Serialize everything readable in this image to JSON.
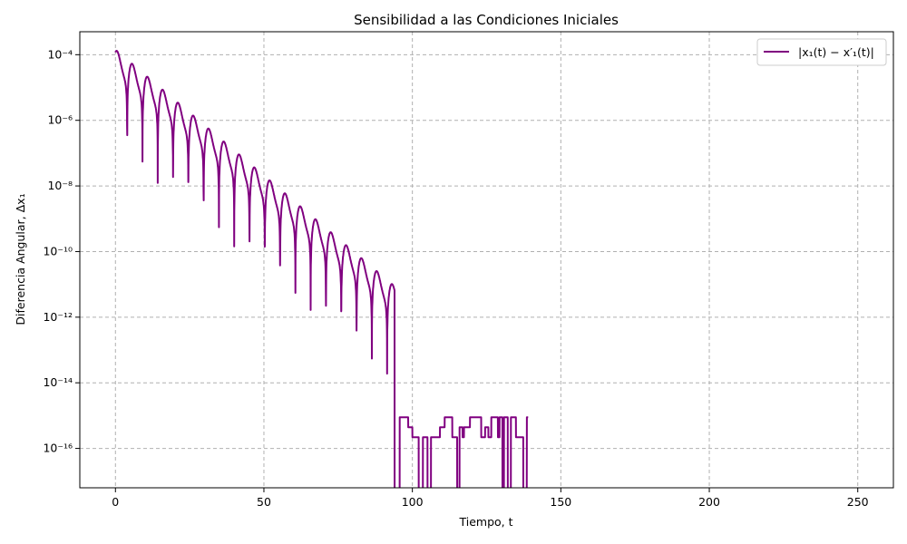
{
  "chart_data": {
    "type": "line",
    "title": "Sensibilidad a las Condiciones Iniciales",
    "xlabel": "Tiempo, t",
    "ylabel": "Diferencia Angular, Δx₁",
    "xlim": [
      -12,
      262
    ],
    "ylim_log10": [
      -17.2,
      -3.3
    ],
    "yscale": "log",
    "xticks": [
      0,
      50,
      100,
      150,
      200,
      250
    ],
    "yticks": [
      {
        "exp": -4,
        "label": "10⁻⁴"
      },
      {
        "exp": -6,
        "label": "10⁻⁶"
      },
      {
        "exp": -8,
        "label": "10⁻⁸"
      },
      {
        "exp": -10,
        "label": "10⁻¹⁰"
      },
      {
        "exp": -12,
        "label": "10⁻¹²"
      },
      {
        "exp": -14,
        "label": "10⁻¹⁴"
      },
      {
        "exp": -16,
        "label": "10⁻¹⁶"
      }
    ],
    "grid": true,
    "legend_position": "top-right",
    "series": [
      {
        "name": "|x₁(t) − x′₁(t)|",
        "color": "#800080",
        "t_end": 139,
        "initial_diff": 0.0001,
        "decay_per_unit": 0.0767,
        "dip_period": 5.15,
        "floor_start": 94,
        "floor_levels": [
          8.9e-16,
          4.4e-16,
          2.2e-16
        ]
      }
    ]
  }
}
